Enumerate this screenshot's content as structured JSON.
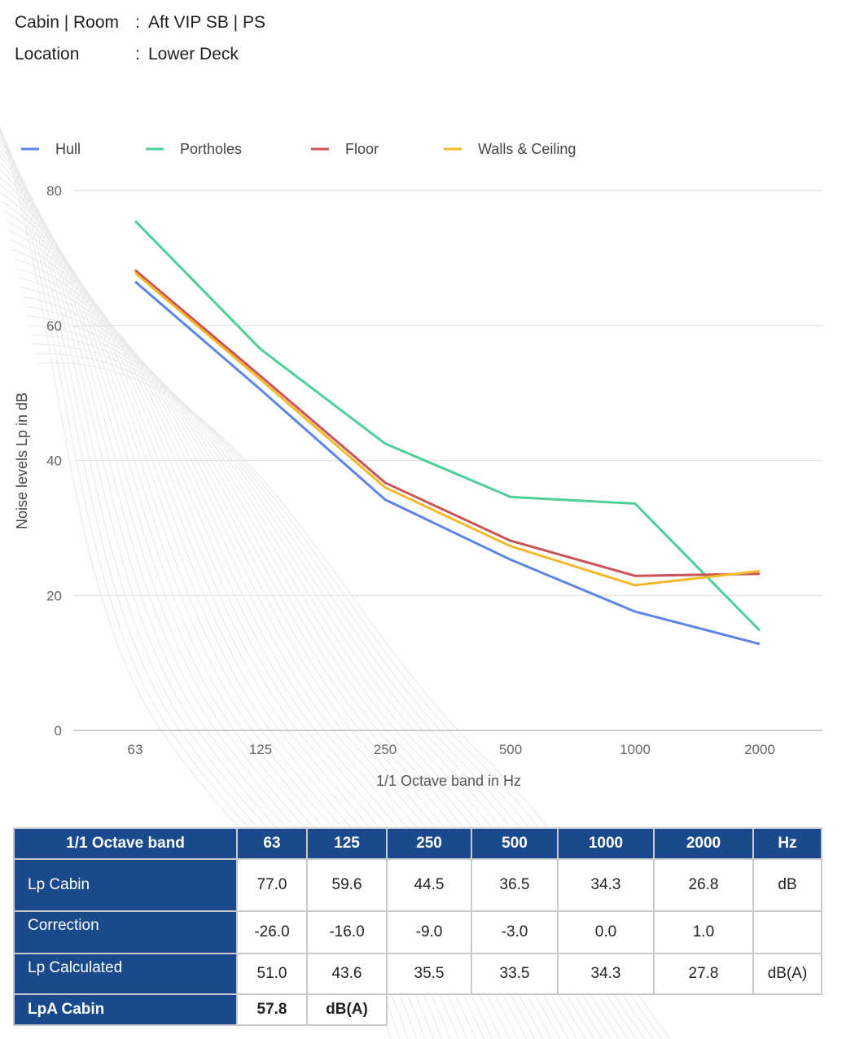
{
  "header": {
    "cabin_label": "Cabin | Room",
    "cabin_value": "Aft VIP SB | PS",
    "location_label": "Location",
    "location_value": "Lower Deck",
    "separator": ":"
  },
  "chart_data": {
    "type": "line",
    "categories": [
      "63",
      "125",
      "250",
      "500",
      "1000",
      "2000"
    ],
    "series": [
      {
        "name": "Hull",
        "color": "#5b86e5",
        "values": [
          66.5,
          50.5,
          34.2,
          25.3,
          17.6,
          12.8
        ]
      },
      {
        "name": "Portholes",
        "color": "#4fcf98",
        "values": [
          75.5,
          56.5,
          42.5,
          34.6,
          33.6,
          14.8
        ]
      },
      {
        "name": "Floor",
        "color": "#c9555a",
        "values": [
          68.2,
          52.5,
          36.7,
          28.1,
          22.9,
          23.2
        ]
      },
      {
        "name": "Walls & Ceiling",
        "color": "#f4b92a",
        "values": [
          67.8,
          52.0,
          36.0,
          27.3,
          21.5,
          23.6
        ]
      }
    ],
    "yticks": [
      0,
      20,
      40,
      60,
      80
    ],
    "ylim": [
      0,
      80
    ],
    "xlabel": "1/1 Octave band in Hz",
    "ylabel": "Noise levels Lp in dB",
    "legend_position": "top-left"
  },
  "table": {
    "header": [
      "1/1 Octave band",
      "63",
      "125",
      "250",
      "500",
      "1000",
      "2000",
      "Hz"
    ],
    "rows": [
      {
        "label": "Lp Cabin",
        "values": [
          "77.0",
          "59.6",
          "44.5",
          "36.5",
          "34.3",
          "26.8"
        ],
        "unit": "dB"
      },
      {
        "label": "Correction",
        "values": [
          "-26.0",
          "-16.0",
          "-9.0",
          "-3.0",
          "0.0",
          "1.0"
        ],
        "unit": ""
      },
      {
        "label": "Lp Calculated",
        "values": [
          "51.0",
          "43.6",
          "35.5",
          "33.5",
          "34.3",
          "27.8"
        ],
        "unit": "dB(A)"
      }
    ],
    "lpa": {
      "label": "LpA Cabin",
      "value": "57.8",
      "unit": "dB(A)"
    }
  }
}
